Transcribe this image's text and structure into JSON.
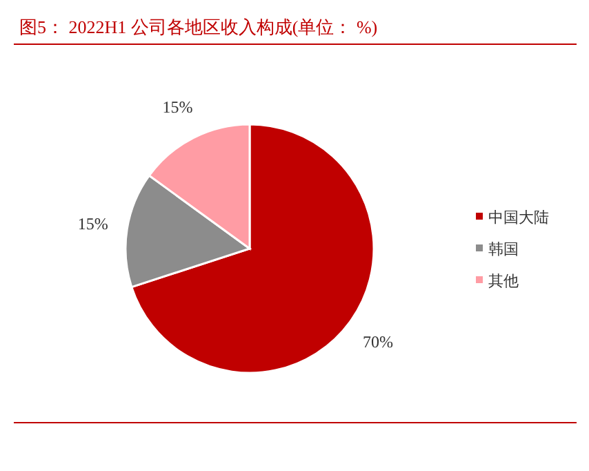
{
  "chart_data": {
    "type": "pie",
    "title": "图5： 2022H1 公司各地区收入构成(单位： %)",
    "categories": [
      "中国大陆",
      "韩国",
      "其他"
    ],
    "values": [
      70,
      15,
      15
    ],
    "colors": [
      "#c00000",
      "#8c8c8c",
      "#ff9ca4"
    ],
    "value_labels": [
      "70%",
      "15%",
      "15%"
    ],
    "legend": "right"
  }
}
